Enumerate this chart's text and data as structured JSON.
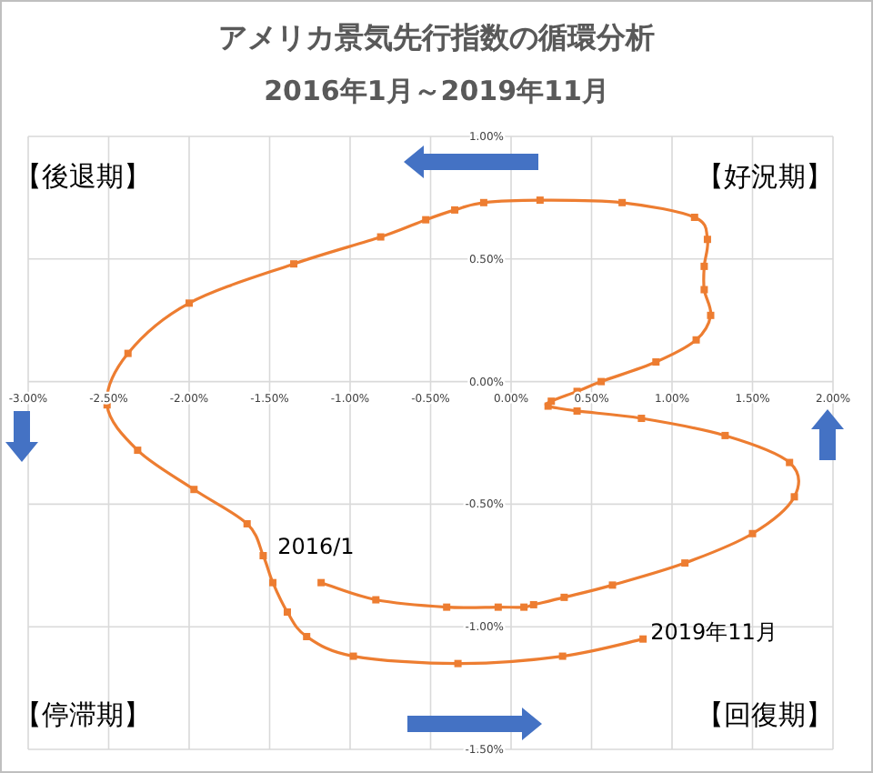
{
  "chart_data": {
    "type": "line",
    "title": "アメリカ景気先行指数の循環分析",
    "subtitle": "2016年1月～2019年11月",
    "series": [
      {
        "color": "#ed7d31",
        "x": [
          -1.18,
          -0.84,
          -0.4,
          -0.08,
          0.08,
          0.14,
          0.33,
          0.63,
          1.08,
          1.5,
          1.76,
          1.73,
          1.33,
          0.81,
          0.41,
          0.23,
          0.25,
          0.41,
          0.56,
          0.9,
          1.15,
          1.24,
          1.2,
          1.2,
          1.22,
          1.14,
          0.69,
          0.18,
          -0.17,
          -0.35,
          -0.53,
          -0.81,
          -1.35,
          -2.0,
          -2.38,
          -2.51,
          -2.32,
          -1.97,
          -1.64,
          -1.54,
          -1.48,
          -1.39,
          -1.27,
          -0.98,
          -0.33,
          0.32,
          0.82
        ],
        "values": [
          -0.82,
          -0.89,
          -0.92,
          -0.92,
          -0.92,
          -0.91,
          -0.88,
          -0.83,
          -0.74,
          -0.62,
          -0.47,
          -0.33,
          -0.22,
          -0.15,
          -0.12,
          -0.1,
          -0.08,
          -0.04,
          0.0,
          0.08,
          0.17,
          0.27,
          0.375,
          0.47,
          0.58,
          0.67,
          0.73,
          0.74,
          0.73,
          0.7,
          0.66,
          0.59,
          0.48,
          0.32,
          0.115,
          -0.095,
          -0.28,
          -0.44,
          -0.58,
          -0.71,
          -0.82,
          -0.94,
          -1.04,
          -1.12,
          -1.15,
          -1.12,
          -1.05
        ]
      }
    ],
    "marker": "square",
    "line_style": "solid",
    "grid": true,
    "xlim": [
      -3,
      2
    ],
    "ylim": [
      -1.5,
      1
    ],
    "xticks": [
      {
        "value": -3,
        "label": "-3.00%"
      },
      {
        "value": -2.5,
        "label": "-2.50%"
      },
      {
        "value": -2,
        "label": "-2.00%"
      },
      {
        "value": -1.5,
        "label": "-1.50%"
      },
      {
        "value": -1,
        "label": "-1.00%"
      },
      {
        "value": -0.5,
        "label": "-0.50%"
      },
      {
        "value": 0,
        "label": "0.00%"
      },
      {
        "value": 0.5,
        "label": "0.50%"
      },
      {
        "value": 1,
        "label": "1.00%"
      },
      {
        "value": 1.5,
        "label": "1.50%"
      },
      {
        "value": 2,
        "label": "2.00%"
      }
    ],
    "yticks": [
      {
        "value": -1.5,
        "label": "-1.50%"
      },
      {
        "value": -1,
        "label": "-1.00%"
      },
      {
        "value": -0.5,
        "label": "-0.50%"
      },
      {
        "value": 0,
        "label": "0.00%"
      },
      {
        "value": 0.5,
        "label": "0.50%"
      },
      {
        "value": 1,
        "label": "1.00%"
      }
    ],
    "annotations": [
      "【後退期】",
      "【好況期】",
      "【停滞期】",
      "【回復期】",
      {
        "text": "2016/1",
        "x": -1.18,
        "y": -0.82
      },
      {
        "text": "2019年11月",
        "x": 0.82,
        "y": -1.05
      }
    ]
  }
}
